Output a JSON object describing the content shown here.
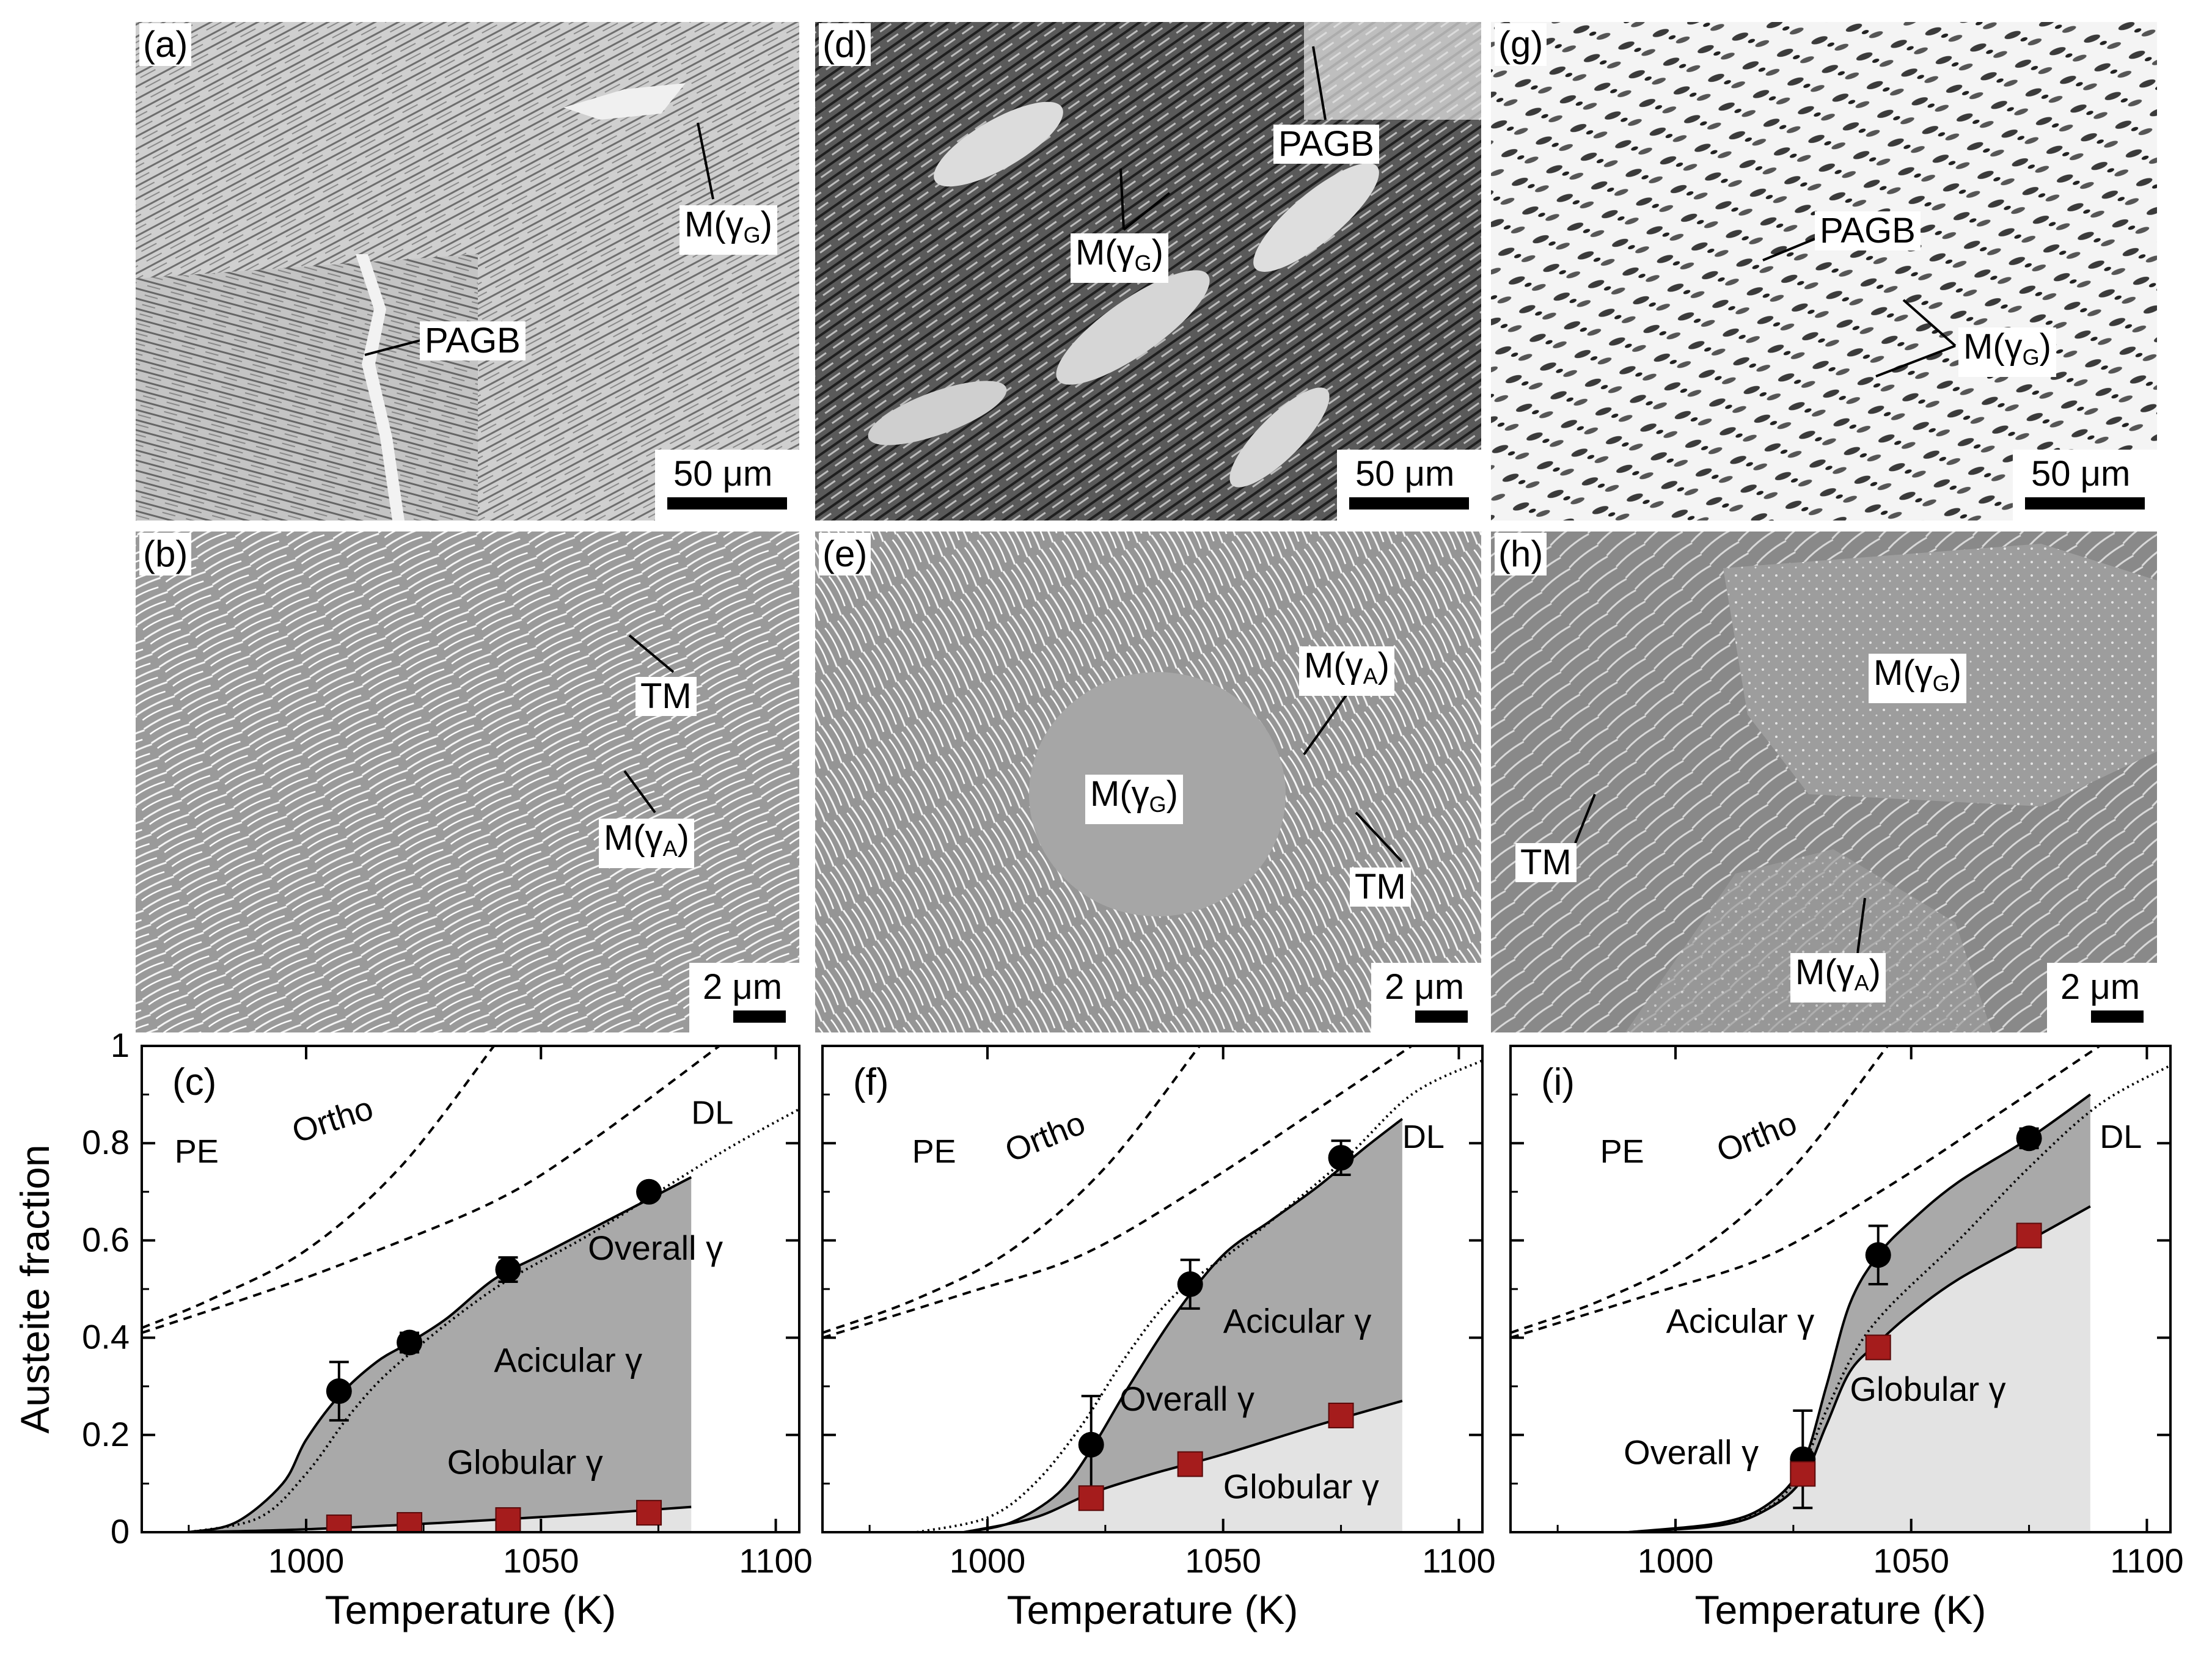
{
  "micrographs": [
    {
      "id": "a",
      "letter": "(a)",
      "type": "optical",
      "scale": "50 μm",
      "labels": [
        {
          "key": "PAGB",
          "text": "PAGB"
        },
        {
          "key": "MG",
          "text": "M(γG)"
        }
      ]
    },
    {
      "id": "b",
      "letter": "(b)",
      "type": "sem",
      "scale": "2 μm",
      "labels": [
        {
          "key": "TM",
          "text": "TM"
        },
        {
          "key": "MA",
          "text": "M(γA)"
        }
      ]
    },
    {
      "id": "d",
      "letter": "(d)",
      "type": "optical_dark",
      "scale": "50 μm",
      "labels": [
        {
          "key": "PAGB",
          "text": "PAGB"
        },
        {
          "key": "MG",
          "text": "M(γG)"
        }
      ]
    },
    {
      "id": "e",
      "letter": "(e)",
      "type": "sem",
      "scale": "2 μm",
      "labels": [
        {
          "key": "MA",
          "text": "M(γA)"
        },
        {
          "key": "MG",
          "text": "M(γG)"
        },
        {
          "key": "TM",
          "text": "TM"
        }
      ]
    },
    {
      "id": "g",
      "letter": "(g)",
      "type": "optical_light",
      "scale": "50 μm",
      "labels": [
        {
          "key": "PAGB",
          "text": "PAGB"
        },
        {
          "key": "MG",
          "text": "M(γG)"
        }
      ]
    },
    {
      "id": "h",
      "letter": "(h)",
      "type": "sem",
      "scale": "2 μm",
      "labels": [
        {
          "key": "MG",
          "text": "M(γG)"
        },
        {
          "key": "TM",
          "text": "TM"
        },
        {
          "key": "MA",
          "text": "M(γA)"
        }
      ]
    }
  ],
  "axis": {
    "ylabel": "Austeite fraction",
    "xlabel": "Temperature (K)",
    "yticks": [
      "0",
      "0.2",
      "0.4",
      "0.6",
      "0.8",
      "1"
    ],
    "xticks": [
      "1000",
      "1050",
      "1100"
    ]
  },
  "colors": {
    "acicular": "#a9a9a9",
    "globular": "#e3e3e3",
    "overall_marker": "#000000",
    "globular_marker": "#a51c1c"
  },
  "chart_data": [
    {
      "type": "area",
      "panel": "(c)",
      "xlim": [
        965,
        1105
      ],
      "ylim": [
        0,
        1
      ],
      "curve_labels": {
        "PE": "PE",
        "Ortho": "Ortho",
        "DL": "DL"
      },
      "region_labels": {
        "acicular": "Acicular γ",
        "globular": "Globular γ",
        "overall": "Overall γ"
      },
      "overall_points": {
        "x": [
          1007,
          1022,
          1043,
          1073
        ],
        "y": [
          0.29,
          0.39,
          0.54,
          0.7
        ],
        "err": [
          0.06,
          0.02,
          0.025,
          0.01
        ]
      },
      "globular_points": {
        "x": [
          1007,
          1022,
          1043,
          1073
        ],
        "y": [
          0.01,
          0.015,
          0.025,
          0.04
        ]
      },
      "overall_curve": {
        "x": [
          975,
          985,
          995,
          1000,
          1007,
          1015,
          1022,
          1030,
          1040,
          1050,
          1060,
          1070,
          1082
        ],
        "y": [
          0,
          0.02,
          0.1,
          0.19,
          0.28,
          0.35,
          0.39,
          0.44,
          0.52,
          0.57,
          0.62,
          0.67,
          0.73
        ]
      },
      "globular_curve": {
        "x": [
          975,
          1000,
          1030,
          1060,
          1082
        ],
        "y": [
          0,
          0.006,
          0.02,
          0.037,
          0.052
        ]
      },
      "PE_curve": {
        "x": [
          965,
          980,
          1000,
          1020,
          1040
        ],
        "y": [
          0.42,
          0.48,
          0.58,
          0.75,
          1.0
        ]
      },
      "Ortho_curve": {
        "x": [
          965,
          990,
          1010,
          1040,
          1060,
          1088
        ],
        "y": [
          0.41,
          0.49,
          0.56,
          0.68,
          0.8,
          1.0
        ]
      },
      "DL_curve": {
        "x": [
          975,
          990,
          1000,
          1010,
          1020,
          1040,
          1060,
          1075,
          1090,
          1105
        ],
        "y": [
          0,
          0.03,
          0.12,
          0.25,
          0.35,
          0.5,
          0.61,
          0.7,
          0.79,
          0.87
        ]
      }
    },
    {
      "type": "area",
      "panel": "(f)",
      "xlim": [
        965,
        1105
      ],
      "ylim": [
        0,
        1
      ],
      "curve_labels": {
        "PE": "PE",
        "Ortho": "Ortho",
        "DL": "DL"
      },
      "region_labels": {
        "acicular": "Acicular γ",
        "globular": "Globular γ",
        "overall": "Overall γ"
      },
      "overall_points": {
        "x": [
          1022,
          1043,
          1075
        ],
        "y": [
          0.18,
          0.51,
          0.77
        ],
        "err": [
          0.1,
          0.05,
          0.035
        ]
      },
      "globular_points": {
        "x": [
          1022,
          1043,
          1075
        ],
        "y": [
          0.07,
          0.14,
          0.24
        ]
      },
      "overall_curve": {
        "x": [
          995,
          1005,
          1015,
          1022,
          1030,
          1040,
          1050,
          1060,
          1070,
          1080,
          1088
        ],
        "y": [
          0,
          0.02,
          0.08,
          0.17,
          0.3,
          0.45,
          0.57,
          0.64,
          0.71,
          0.79,
          0.85
        ]
      },
      "globular_curve": {
        "x": [
          995,
          1010,
          1022,
          1035,
          1050,
          1070,
          1088
        ],
        "y": [
          0,
          0.03,
          0.08,
          0.12,
          0.16,
          0.22,
          0.27
        ]
      },
      "PE_curve": {
        "x": [
          965,
          985,
          1005,
          1025,
          1045
        ],
        "y": [
          0.41,
          0.48,
          0.58,
          0.75,
          1.0
        ]
      },
      "Ortho_curve": {
        "x": [
          965,
          995,
          1020,
          1045,
          1070,
          1090
        ],
        "y": [
          0.4,
          0.49,
          0.57,
          0.71,
          0.87,
          1.0
        ]
      },
      "DL_curve": {
        "x": [
          985,
          1000,
          1010,
          1020,
          1030,
          1040,
          1055,
          1075,
          1090,
          1105
        ],
        "y": [
          0,
          0.03,
          0.1,
          0.22,
          0.37,
          0.49,
          0.6,
          0.76,
          0.9,
          0.97
        ]
      }
    },
    {
      "type": "area",
      "panel": "(i)",
      "xlim": [
        965,
        1105
      ],
      "ylim": [
        0,
        1
      ],
      "curve_labels": {
        "PE": "PE",
        "Ortho": "Ortho",
        "DL": "DL"
      },
      "region_labels": {
        "acicular": "Acicular γ",
        "globular": "Globular γ",
        "overall": "Overall γ"
      },
      "overall_points": {
        "x": [
          1027,
          1043,
          1075
        ],
        "y": [
          0.15,
          0.57,
          0.81
        ],
        "err": [
          0.1,
          0.06,
          0.02
        ]
      },
      "globular_points": {
        "x": [
          1027,
          1043,
          1075
        ],
        "y": [
          0.12,
          0.38,
          0.61
        ]
      },
      "overall_curve": {
        "x": [
          990,
          1010,
          1020,
          1027,
          1032,
          1037,
          1043,
          1050,
          1060,
          1075,
          1088
        ],
        "y": [
          0,
          0.02,
          0.06,
          0.14,
          0.3,
          0.47,
          0.57,
          0.64,
          0.72,
          0.81,
          0.9
        ]
      },
      "globular_curve": {
        "x": [
          990,
          1010,
          1020,
          1027,
          1032,
          1037,
          1043,
          1050,
          1060,
          1075,
          1088
        ],
        "y": [
          0,
          0.015,
          0.05,
          0.11,
          0.22,
          0.33,
          0.39,
          0.45,
          0.52,
          0.6,
          0.67
        ]
      },
      "PE_curve": {
        "x": [
          965,
          985,
          1005,
          1025,
          1045
        ],
        "y": [
          0.41,
          0.48,
          0.58,
          0.75,
          1.0
        ]
      },
      "Ortho_curve": {
        "x": [
          965,
          995,
          1020,
          1045,
          1070,
          1090
        ],
        "y": [
          0.4,
          0.49,
          0.57,
          0.71,
          0.87,
          1.0
        ]
      },
      "DL_curve": {
        "x": [
          995,
          1015,
          1025,
          1032,
          1038,
          1045,
          1060,
          1075,
          1090,
          1105
        ],
        "y": [
          0,
          0.03,
          0.1,
          0.25,
          0.37,
          0.46,
          0.6,
          0.75,
          0.88,
          0.96
        ]
      }
    }
  ]
}
